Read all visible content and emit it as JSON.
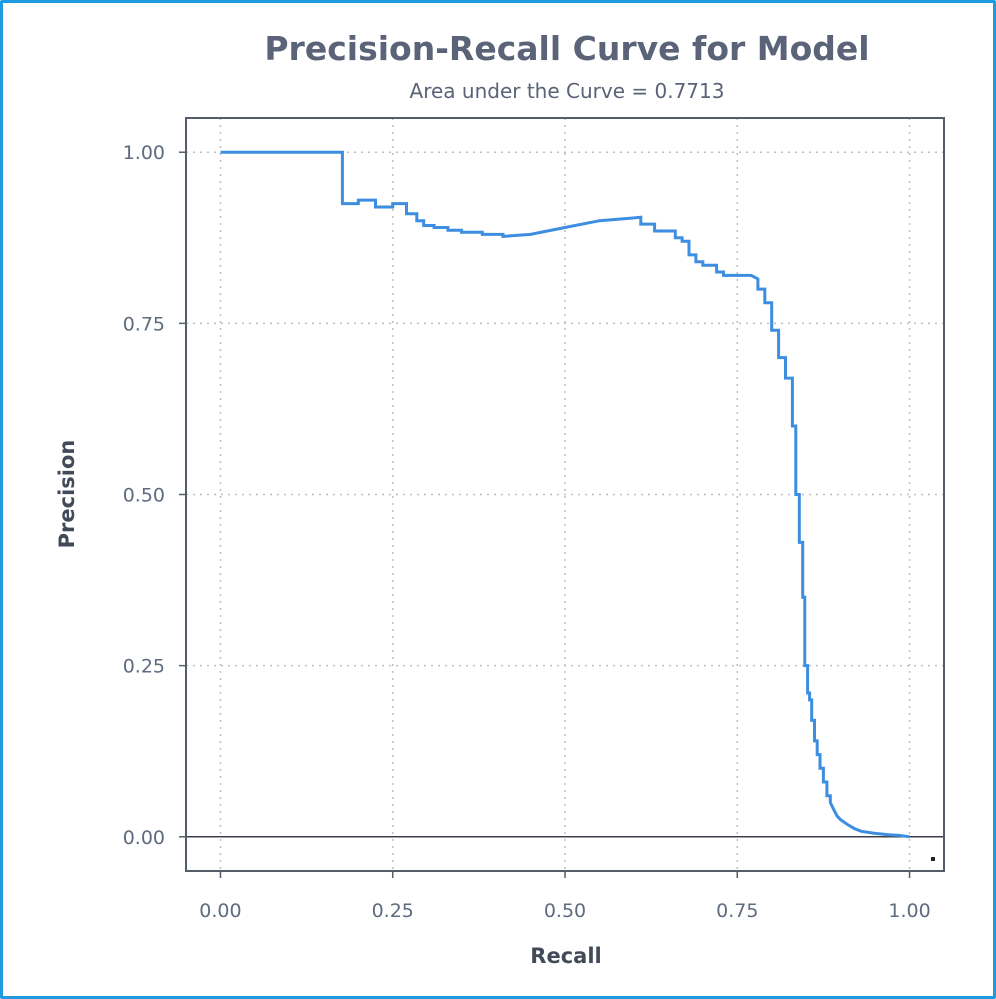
{
  "chart_data": {
    "type": "line",
    "title": "Precision-Recall Curve for Model",
    "subtitle": "Area under the Curve = 0.7713",
    "xlabel": "Recall",
    "ylabel": "Precision",
    "xlim": [
      -0.05,
      1.05
    ],
    "ylim": [
      -0.05,
      1.05
    ],
    "xticks": [
      "0.00",
      "0.25",
      "0.50",
      "0.75",
      "1.00"
    ],
    "yticks": [
      "0.00",
      "0.25",
      "0.50",
      "0.75",
      "1.00"
    ],
    "grid": true,
    "baseline_y": 0,
    "line_color": "#3d8ee0",
    "series": [
      {
        "x": [
          0.0,
          0.177,
          0.177,
          0.2,
          0.2,
          0.225,
          0.225,
          0.25,
          0.25,
          0.27,
          0.27,
          0.285,
          0.285,
          0.295,
          0.295,
          0.31,
          0.31,
          0.33,
          0.33,
          0.35,
          0.35,
          0.38,
          0.38,
          0.41,
          0.41,
          0.45,
          0.5,
          0.55,
          0.61,
          0.61,
          0.63,
          0.63,
          0.66,
          0.66,
          0.67,
          0.67,
          0.68,
          0.68,
          0.69,
          0.69,
          0.7,
          0.7,
          0.72,
          0.72,
          0.73,
          0.73,
          0.75,
          0.77,
          0.78,
          0.78,
          0.79,
          0.79,
          0.8,
          0.8,
          0.81,
          0.81,
          0.82,
          0.82,
          0.83,
          0.83,
          0.835,
          0.835,
          0.84,
          0.84,
          0.845,
          0.845,
          0.848,
          0.848,
          0.852,
          0.852,
          0.855,
          0.855,
          0.858,
          0.858,
          0.862,
          0.862,
          0.866,
          0.866,
          0.87,
          0.87,
          0.875,
          0.875,
          0.88,
          0.88,
          0.885,
          0.885,
          0.89,
          0.895,
          0.9,
          0.91,
          0.92,
          0.93,
          0.95,
          0.97,
          0.985,
          1.0
        ],
        "y": [
          1.0,
          1.0,
          0.925,
          0.925,
          0.93,
          0.93,
          0.92,
          0.92,
          0.925,
          0.925,
          0.91,
          0.91,
          0.9,
          0.9,
          0.893,
          0.893,
          0.89,
          0.89,
          0.886,
          0.886,
          0.883,
          0.883,
          0.88,
          0.88,
          0.877,
          0.88,
          0.89,
          0.9,
          0.905,
          0.895,
          0.895,
          0.885,
          0.885,
          0.875,
          0.875,
          0.87,
          0.87,
          0.85,
          0.85,
          0.84,
          0.84,
          0.835,
          0.835,
          0.825,
          0.825,
          0.82,
          0.82,
          0.82,
          0.815,
          0.8,
          0.8,
          0.78,
          0.78,
          0.74,
          0.74,
          0.7,
          0.7,
          0.67,
          0.67,
          0.6,
          0.6,
          0.5,
          0.5,
          0.43,
          0.43,
          0.35,
          0.35,
          0.25,
          0.25,
          0.21,
          0.21,
          0.2,
          0.2,
          0.17,
          0.17,
          0.14,
          0.14,
          0.12,
          0.12,
          0.1,
          0.1,
          0.08,
          0.08,
          0.06,
          0.06,
          0.05,
          0.04,
          0.03,
          0.025,
          0.018,
          0.012,
          0.008,
          0.005,
          0.003,
          0.002,
          0.0
        ]
      }
    ]
  }
}
